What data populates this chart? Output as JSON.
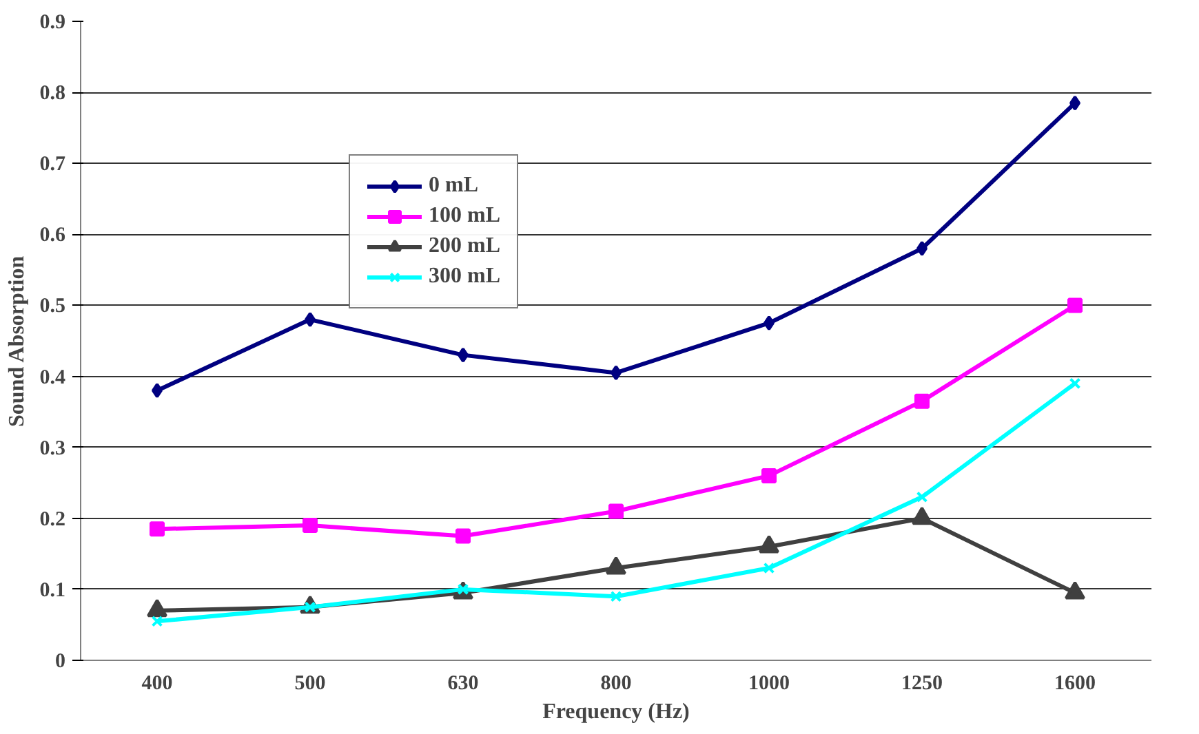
{
  "chart_data": {
    "type": "line",
    "xlabel": "Frequency (Hz)",
    "ylabel": "Sound Absorption",
    "categories": [
      "400",
      "500",
      "630",
      "800",
      "1000",
      "1250",
      "1600"
    ],
    "ylim": [
      0,
      0.9
    ],
    "yticks": [
      0,
      0.1,
      0.2,
      0.3,
      0.4,
      0.5,
      0.6,
      0.7,
      0.8,
      0.9
    ],
    "grid": "y",
    "legend": "top",
    "series": [
      {
        "name": "0 mL",
        "color": "#000080",
        "marker": "diamond",
        "values": [
          0.38,
          0.48,
          0.43,
          0.405,
          0.475,
          0.58,
          0.785
        ]
      },
      {
        "name": "100 mL",
        "color": "#ff00ff",
        "marker": "square",
        "values": [
          0.185,
          0.19,
          0.175,
          0.21,
          0.26,
          0.365,
          0.5
        ]
      },
      {
        "name": "200 mL",
        "color": "#404040",
        "marker": "triangle",
        "values": [
          0.07,
          0.075,
          0.095,
          0.13,
          0.16,
          0.2,
          0.095
        ]
      },
      {
        "name": "300 mL",
        "color": "#00ffff",
        "marker": "cross",
        "values": [
          0.055,
          0.075,
          0.1,
          0.09,
          0.13,
          0.23,
          0.39
        ]
      }
    ]
  }
}
